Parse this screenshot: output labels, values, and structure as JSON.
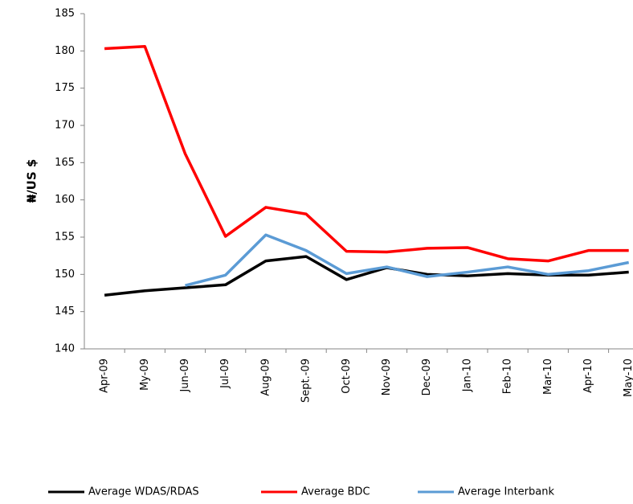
{
  "chart_data": {
    "type": "line",
    "y_label": "₦/US $",
    "categories": [
      "Apr-09",
      "My-09",
      "Jun-09",
      "Jul-09",
      "Aug-09",
      "Sept.-09",
      "Oct-09",
      "Nov-09",
      "Dec-09",
      "Jan-10",
      "Feb-10",
      "Mar-10",
      "Apr-10",
      "May-10"
    ],
    "series": [
      {
        "name": "Average WDAS/RDAS",
        "color": "#000000",
        "values": [
          147.2,
          147.8,
          148.2,
          148.6,
          151.8,
          152.4,
          149.3,
          150.9,
          150.0,
          149.8,
          150.1,
          149.9,
          149.9,
          150.3
        ]
      },
      {
        "name": "Average BDC",
        "color": "#ff0000",
        "values": [
          180.3,
          180.6,
          166.2,
          155.1,
          159.0,
          158.1,
          153.1,
          153.0,
          153.5,
          153.6,
          152.1,
          151.8,
          153.2,
          153.2
        ]
      },
      {
        "name": "Average Interbank",
        "color": "#5b9bd5",
        "values": [
          null,
          null,
          148.5,
          149.9,
          155.3,
          153.2,
          150.1,
          151.0,
          149.7,
          150.3,
          151.0,
          150.0,
          150.5,
          151.6
        ]
      }
    ],
    "ylim": [
      140,
      185
    ],
    "yticks": [
      140,
      145,
      150,
      155,
      160,
      165,
      170,
      175,
      180,
      185
    ],
    "grid": false,
    "legend": "bottom"
  }
}
